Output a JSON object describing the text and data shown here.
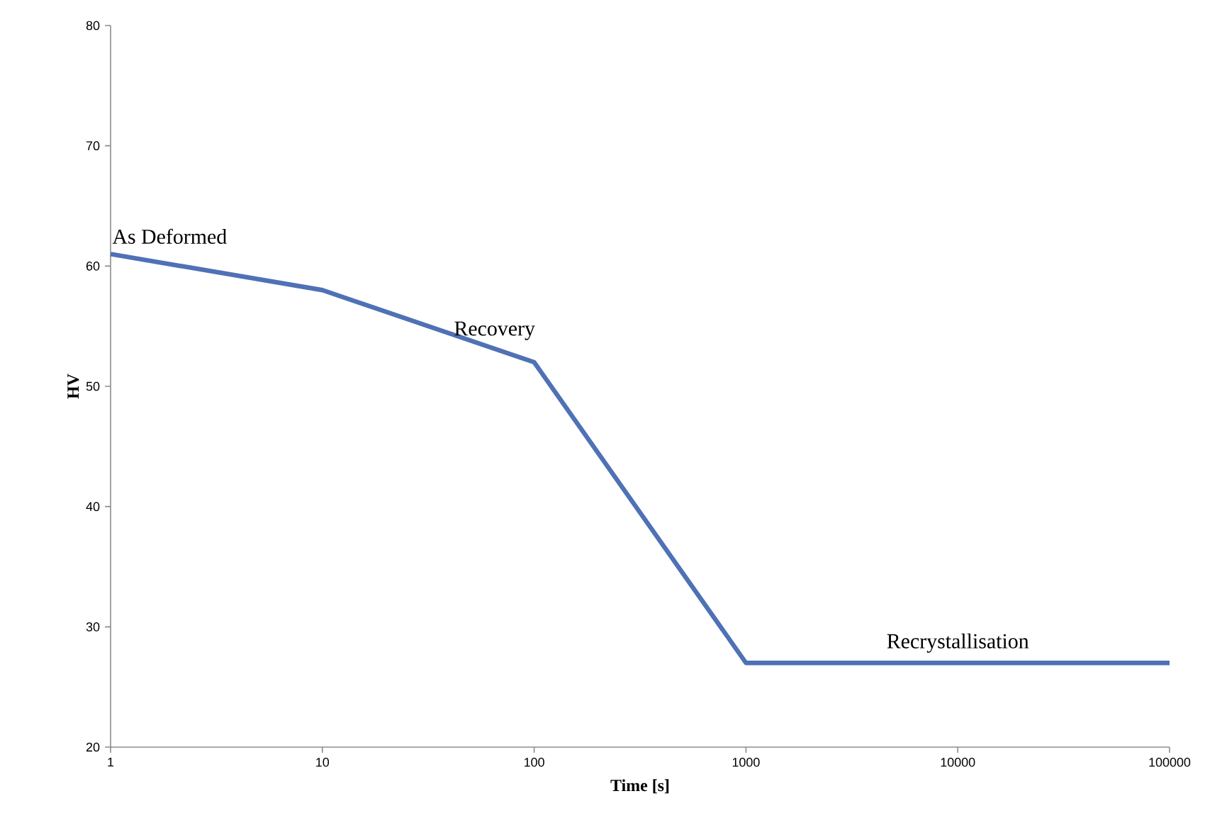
{
  "chart_data": {
    "type": "line",
    "xlabel": "Time [s]",
    "ylabel": "HV",
    "log": "x",
    "x": [
      1,
      10,
      100,
      1000,
      10000,
      100000
    ],
    "series": [
      {
        "color": "#4f71b5",
        "values": [
          61,
          58,
          52,
          27,
          27,
          27
        ]
      }
    ],
    "xlim": [
      1,
      100000
    ],
    "xticks": [
      1,
      10,
      100,
      1000,
      10000,
      100000
    ],
    "ylim": [
      20,
      80
    ],
    "yticks": [
      20,
      30,
      40,
      50,
      60,
      70,
      80
    ],
    "grid": false,
    "marker": "none",
    "line_style": "solid",
    "annotations": [
      {
        "text": "As Deformed",
        "x": 1,
        "y": 61
      },
      {
        "text": "Recovery",
        "x": 65,
        "y": 53
      },
      {
        "text": "Recrystallisation",
        "x": 10000,
        "y": 27
      }
    ]
  }
}
